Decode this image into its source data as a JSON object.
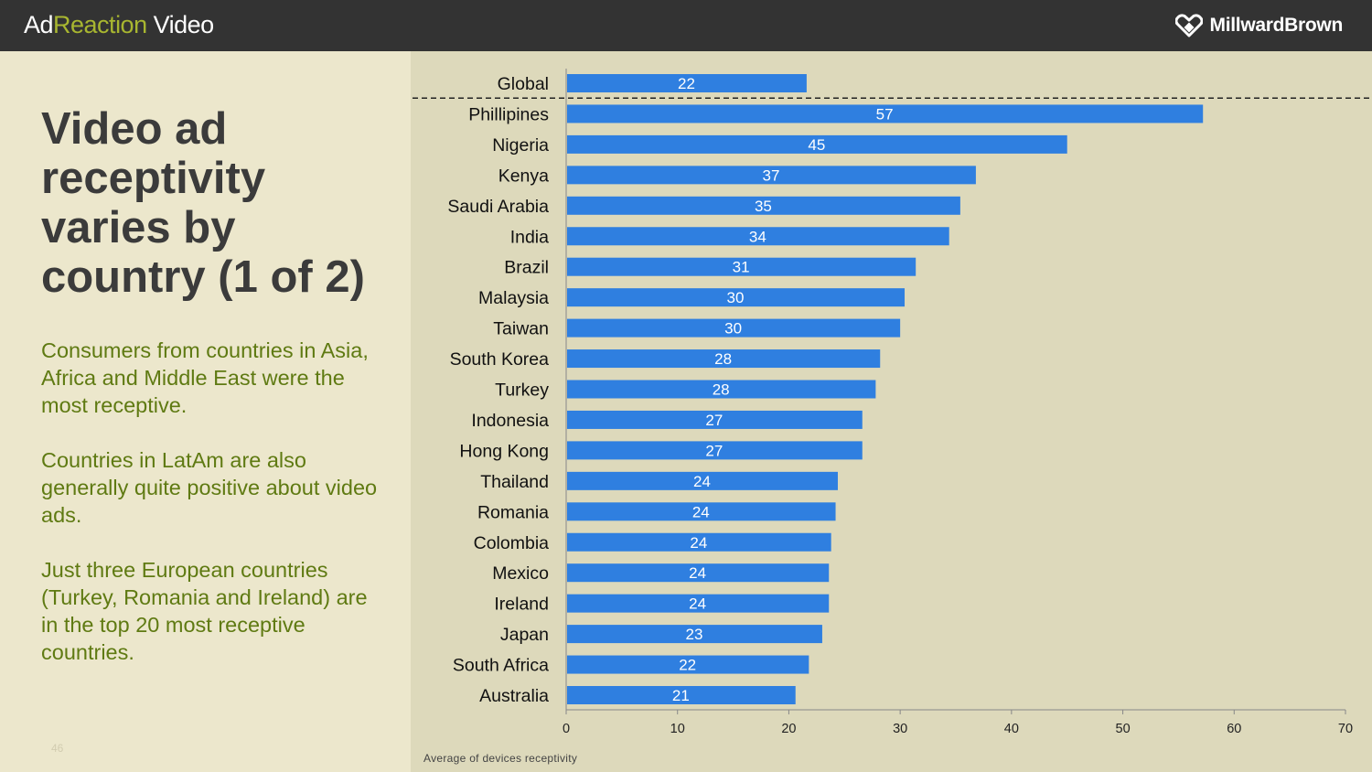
{
  "header": {
    "brand_part1": "Ad",
    "brand_part2": "Reaction",
    "brand_part3": " Video",
    "logo_text": "MillwardBrown",
    "logo_icon": "heart-diamond-icon"
  },
  "slide": {
    "title": "Video ad receptivity varies by country (1 of 2)",
    "paragraphs": [
      "Consumers from countries in Asia, Africa and Middle East were the most receptive.",
      "Countries in LatAm are also generally quite positive about video ads.",
      "Just three European countries (Turkey, Romania and Ireland) are in the top 20 most receptive countries."
    ],
    "page_number": "46"
  },
  "colors": {
    "bar": "#2f7fe0",
    "topbar": "#333333",
    "accent_green": "#a8b630",
    "body_green": "#5f7a12"
  },
  "chart_data": {
    "type": "bar",
    "orientation": "horizontal",
    "categories": [
      "Global",
      "Phillipines",
      "Nigeria",
      "Kenya",
      "Saudi Arabia",
      "India",
      "Brazil",
      "Malaysia",
      "Taiwan",
      "South Korea",
      "Turkey",
      "Indonesia",
      "Hong Kong",
      "Thailand",
      "Romania",
      "Colombia",
      "Mexico",
      "Ireland",
      "Japan",
      "South Africa",
      "Australia"
    ],
    "values": [
      21.6,
      57.2,
      45.0,
      36.8,
      35.4,
      34.4,
      31.4,
      30.4,
      30.0,
      28.2,
      27.8,
      26.6,
      26.6,
      24.4,
      24.2,
      23.8,
      23.6,
      23.6,
      23.0,
      21.8,
      20.6
    ],
    "labels": [
      "22",
      "57",
      "45",
      "37",
      "35",
      "34",
      "31",
      "30",
      "30",
      "28",
      "28",
      "27",
      "27",
      "24",
      "24",
      "24",
      "24",
      "24",
      "23",
      "22",
      "21"
    ],
    "xlim": [
      0,
      70
    ],
    "xticks": [
      0,
      10,
      20,
      30,
      40,
      50,
      60,
      70
    ],
    "separator_after": "Global",
    "separator_style": "dashed",
    "xlabel": "Average of devices receptivity",
    "grid": false,
    "legend": "none"
  }
}
